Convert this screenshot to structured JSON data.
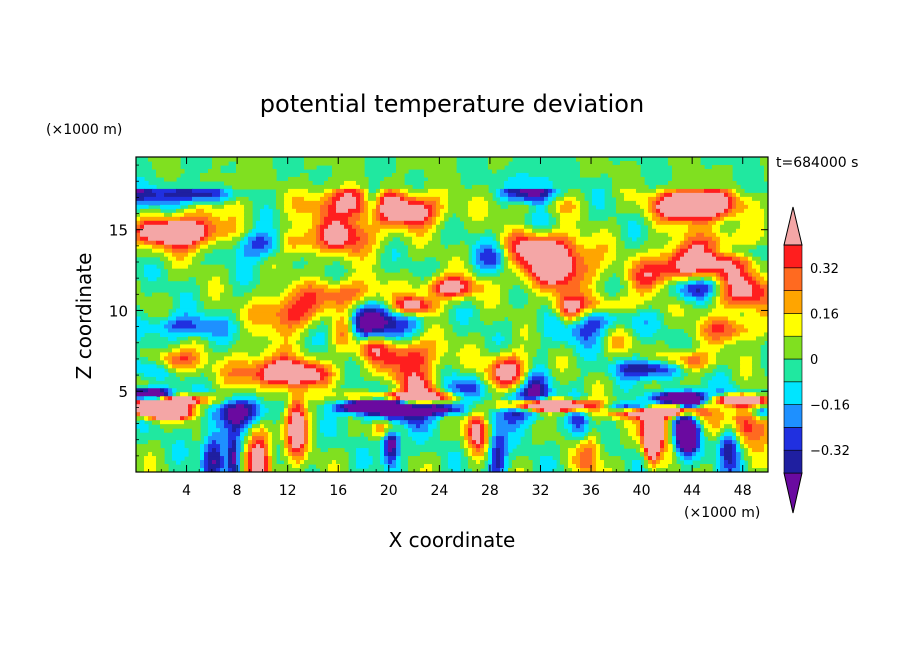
{
  "chart_data": {
    "type": "heatmap",
    "title": "potential temperature deviation",
    "xlabel": "X coordinate",
    "ylabel": "Z coordinate",
    "x_unit_label": "(×1000 m)",
    "y_unit_label": "(×1000 m)",
    "time_label": "t=684000 s",
    "xlim": [
      0,
      50
    ],
    "ylim": [
      0,
      19.5
    ],
    "x_ticks": [
      4,
      8,
      12,
      16,
      20,
      24,
      28,
      32,
      36,
      40,
      44,
      48
    ],
    "x_tick_labels": [
      "4",
      "8",
      "12",
      "16",
      "20",
      "24",
      "28",
      "32",
      "36",
      "40",
      "44",
      "48"
    ],
    "y_ticks": [
      5,
      10,
      15
    ],
    "y_tick_labels": [
      "5",
      "10",
      "15"
    ],
    "colorbar": {
      "levels": [
        -0.4,
        -0.32,
        -0.24,
        -0.16,
        -0.08,
        0,
        0.08,
        0.16,
        0.24,
        0.32,
        0.4
      ],
      "labeled_levels": [
        -0.32,
        -0.16,
        0,
        0.16,
        0.32
      ],
      "labels": [
        "−0.32",
        "−0.16",
        "0",
        "0.16",
        "0.32"
      ],
      "colors": [
        "#6a0aa0",
        "#1f1fa0",
        "#2030e0",
        "#1e90ff",
        "#00e5ff",
        "#20e8a0",
        "#80e020",
        "#ffff00",
        "#ffa500",
        "#ff6a20",
        "#ff1e1e",
        "#f4a6a6"
      ],
      "extend": "both"
    }
  }
}
